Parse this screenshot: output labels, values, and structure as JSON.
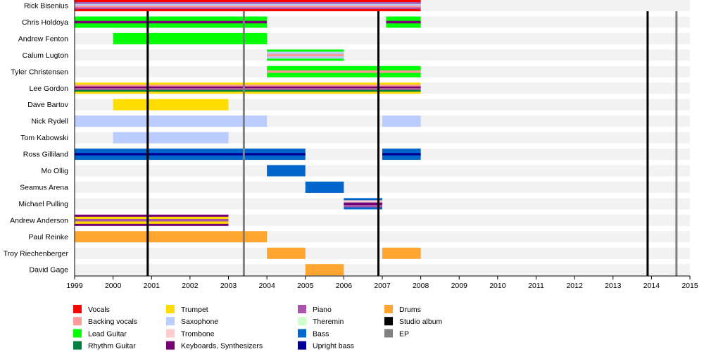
{
  "chart_data": {
    "type": "timeline",
    "xlim": [
      1999,
      2015
    ],
    "x_ticks": [
      1999,
      2000,
      2001,
      2002,
      2003,
      2004,
      2005,
      2006,
      2007,
      2008,
      2009,
      2010,
      2011,
      2012,
      2013,
      2014,
      2015
    ],
    "roles": {
      "vocals": {
        "label": "Vocals",
        "color": "#ff0000"
      },
      "backing": {
        "label": "Backing vocals",
        "color": "#ff9999"
      },
      "lead": {
        "label": "Lead Guitar",
        "color": "#00ff00"
      },
      "rhythm": {
        "label": "Rhythm Guitar",
        "color": "#008040"
      },
      "trumpet": {
        "label": "Trumpet",
        "color": "#ffdd00"
      },
      "sax": {
        "label": "Saxophone",
        "color": "#bbccff"
      },
      "trombone": {
        "label": "Trombone",
        "color": "#ffcccc"
      },
      "keys": {
        "label": "Keyboards, Synthesizers",
        "color": "#770077"
      },
      "piano": {
        "label": "Piano",
        "color": "#aa55aa"
      },
      "theremin": {
        "label": "Theremin",
        "color": "#ccffcc"
      },
      "bass": {
        "label": "Bass",
        "color": "#0066cc"
      },
      "upright": {
        "label": "Upright bass",
        "color": "#000099"
      },
      "drums": {
        "label": "Drums",
        "color": "#ffa530"
      },
      "studio": {
        "label": "Studio album",
        "color": "#000000"
      },
      "ep": {
        "label": "EP",
        "color": "#808080"
      }
    },
    "legend_order": [
      [
        "vocals",
        "backing",
        "lead",
        "rhythm"
      ],
      [
        "trumpet",
        "sax",
        "trombone",
        "keys"
      ],
      [
        "piano",
        "theremin",
        "bass",
        "upright"
      ],
      [
        "drums",
        "studio",
        "ep"
      ]
    ],
    "studio_albums": [
      2000.9,
      2006.9,
      2013.9
    ],
    "eps": [
      2003.4,
      2014.65
    ],
    "members": [
      {
        "name": "Rick Bisenius",
        "bars": [
          {
            "from": 1999,
            "to": 2008,
            "role": "vocals",
            "stripes": [
              "piano",
              "sax",
              "backing",
              "piano"
            ]
          }
        ]
      },
      {
        "name": "Chris Holdoya",
        "bars": [
          {
            "from": 1999,
            "to": 2004,
            "role": "lead",
            "stripes": [
              "keys"
            ]
          },
          {
            "from": 2007.1,
            "to": 2008,
            "role": "lead",
            "stripes": [
              "keys"
            ]
          }
        ]
      },
      {
        "name": "Andrew Fenton",
        "bars": [
          {
            "from": 2000,
            "to": 2004,
            "role": "lead",
            "stripes": []
          }
        ]
      },
      {
        "name": "Calum Lugton",
        "bars": [
          {
            "from": 2004,
            "to": 2006,
            "role": "lead",
            "stripes": [
              "sax",
              "backing",
              "sax"
            ]
          }
        ]
      },
      {
        "name": "Tyler Christensen",
        "bars": [
          {
            "from": 2004,
            "to": 2008,
            "role": "lead",
            "stripes": [
              "backing"
            ]
          }
        ]
      },
      {
        "name": "Lee Gordon",
        "bars": [
          {
            "from": 1999,
            "to": 2008,
            "role": "trumpet",
            "stripes": [
              "backing",
              "keys",
              "piano",
              "rhythm"
            ]
          }
        ]
      },
      {
        "name": "Dave Bartov",
        "bars": [
          {
            "from": 2000,
            "to": 2003,
            "role": "trumpet",
            "stripes": []
          }
        ]
      },
      {
        "name": "Nick Rydell",
        "bars": [
          {
            "from": 1999,
            "to": 2004,
            "role": "sax",
            "stripes": []
          },
          {
            "from": 2007,
            "to": 2008,
            "role": "sax",
            "stripes": []
          }
        ]
      },
      {
        "name": "Tom Kabowski",
        "bars": [
          {
            "from": 2000,
            "to": 2003,
            "role": "sax",
            "stripes": []
          }
        ]
      },
      {
        "name": "Ross Gilliland",
        "bars": [
          {
            "from": 1999,
            "to": 2005,
            "role": "bass",
            "stripes": [
              "upright"
            ]
          },
          {
            "from": 2007,
            "to": 2008,
            "role": "bass",
            "stripes": [
              "upright"
            ]
          }
        ]
      },
      {
        "name": "Mo Ollig",
        "bars": [
          {
            "from": 2004,
            "to": 2005,
            "role": "bass",
            "stripes": []
          }
        ]
      },
      {
        "name": "Seamus Arena",
        "bars": [
          {
            "from": 2005,
            "to": 2006,
            "role": "bass",
            "stripes": []
          }
        ]
      },
      {
        "name": "Michael Pulling",
        "bars": [
          {
            "from": 2006,
            "to": 2007,
            "role": "bass",
            "stripes": [
              "trombone",
              "keys",
              "piano"
            ]
          }
        ]
      },
      {
        "name": "Andrew Anderson",
        "bars": [
          {
            "from": 1999,
            "to": 2003,
            "role": "keys",
            "stripes": [
              "trumpet",
              "piano",
              "trumpet"
            ]
          }
        ]
      },
      {
        "name": "Paul Reinke",
        "bars": [
          {
            "from": 1999,
            "to": 2004,
            "role": "drums",
            "stripes": []
          }
        ]
      },
      {
        "name": "Troy Riechenberger",
        "bars": [
          {
            "from": 2004,
            "to": 2005,
            "role": "drums",
            "stripes": []
          },
          {
            "from": 2007,
            "to": 2008,
            "role": "drums",
            "stripes": []
          }
        ]
      },
      {
        "name": "David Gage",
        "bars": [
          {
            "from": 2005,
            "to": 2006,
            "role": "drums",
            "stripes": []
          }
        ]
      }
    ]
  }
}
